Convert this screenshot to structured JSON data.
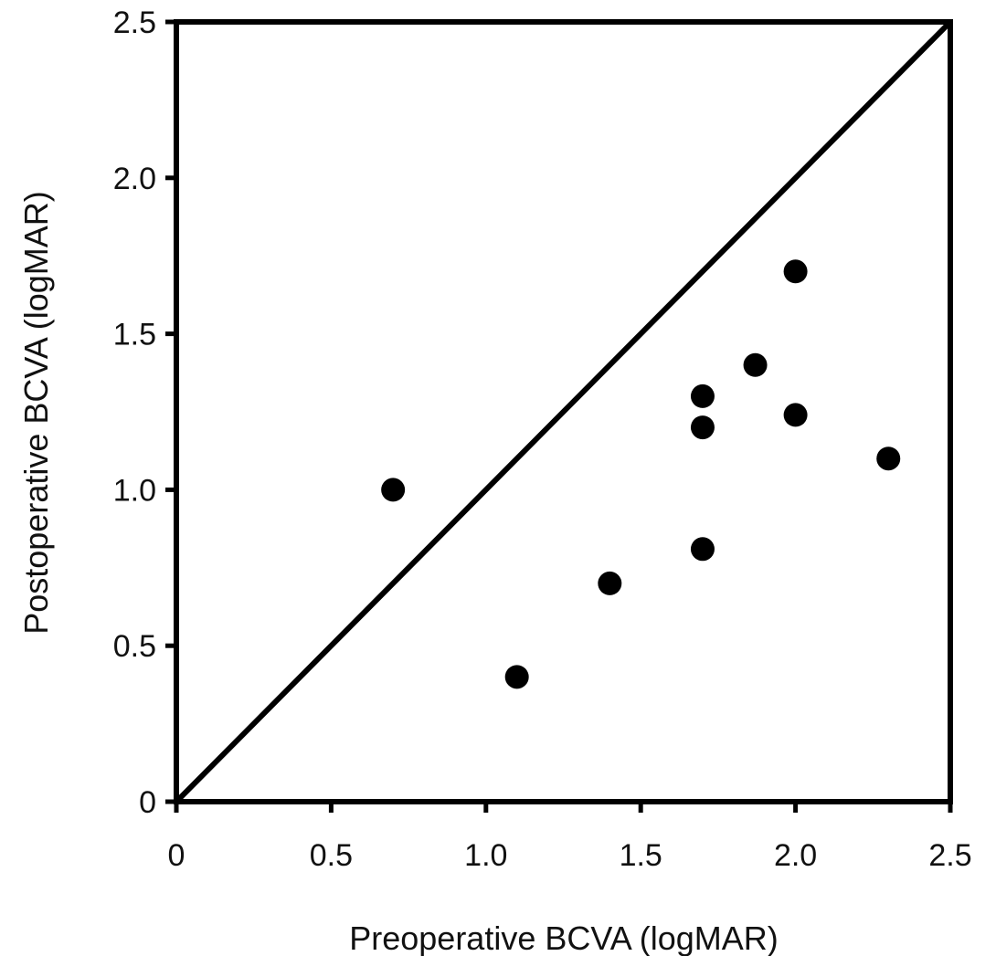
{
  "chart_data": {
    "type": "scatter",
    "xlabel": "Preoperative BCVA (logMAR)",
    "ylabel": "Postoperative BCVA (logMAR)",
    "xlim": [
      0,
      2.5
    ],
    "ylim": [
      0,
      2.5
    ],
    "x_ticks": [
      "0",
      "0.5",
      "1.0",
      "1.5",
      "2.0",
      "2.5"
    ],
    "y_ticks": [
      "0",
      "0.5",
      "1.0",
      "1.5",
      "2.0",
      "2.5"
    ],
    "x_tick_values": [
      0,
      0.5,
      1.0,
      1.5,
      2.0,
      2.5
    ],
    "y_tick_values": [
      0,
      0.5,
      1.0,
      1.5,
      2.0,
      2.5
    ],
    "points": [
      {
        "x": 0.7,
        "y": 1.0
      },
      {
        "x": 1.1,
        "y": 0.4
      },
      {
        "x": 1.4,
        "y": 0.7
      },
      {
        "x": 1.7,
        "y": 0.81
      },
      {
        "x": 1.7,
        "y": 1.2
      },
      {
        "x": 1.7,
        "y": 1.3
      },
      {
        "x": 1.87,
        "y": 1.4
      },
      {
        "x": 2.0,
        "y": 1.24
      },
      {
        "x": 2.0,
        "y": 1.7
      },
      {
        "x": 2.3,
        "y": 1.1
      }
    ],
    "reference_line": {
      "type": "identity",
      "from": [
        0,
        0
      ],
      "to": [
        2.5,
        2.5
      ]
    },
    "grid": false,
    "legend": "none",
    "colors": {
      "marker": "#000000",
      "axis": "#000000",
      "text": "#111111"
    }
  }
}
